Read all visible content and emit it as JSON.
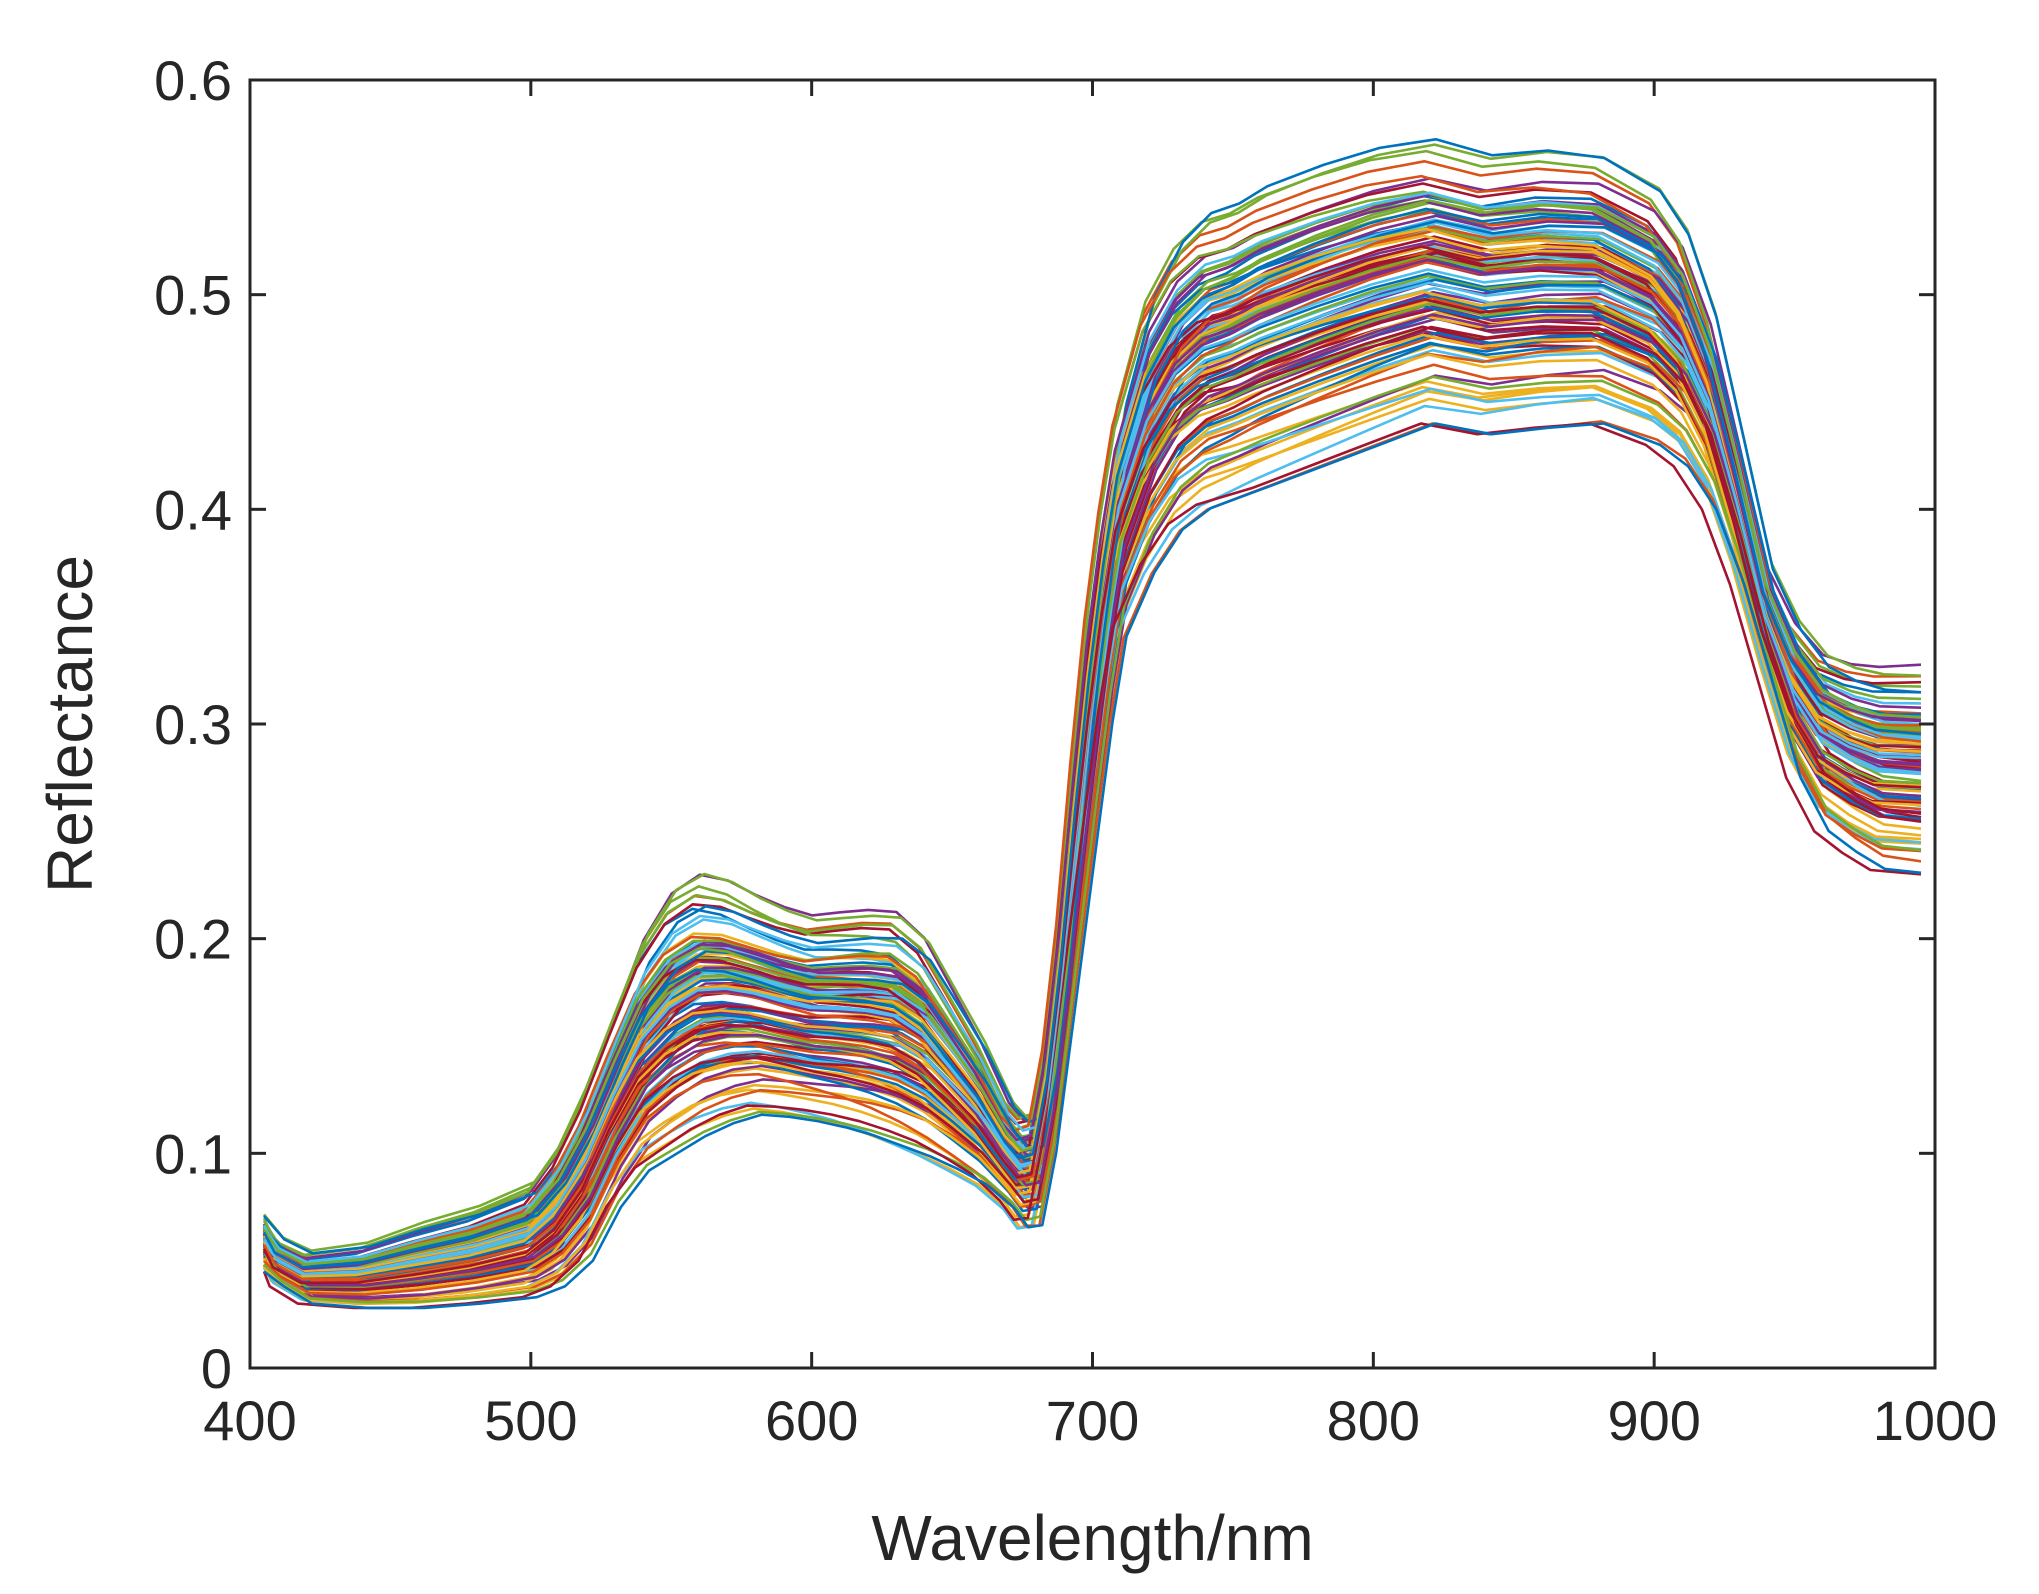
{
  "chart_data": {
    "type": "line",
    "title": "",
    "xlabel": "Wavelength/nm",
    "ylabel": "Reflectance",
    "xlim": [
      400,
      1000
    ],
    "ylim": [
      0,
      0.6
    ],
    "xticks": [
      400,
      500,
      600,
      700,
      800,
      900,
      1000
    ],
    "yticks": [
      0,
      0.1,
      0.2,
      0.3,
      0.4,
      0.5,
      0.6
    ],
    "xtick_labels": [
      "400",
      "500",
      "600",
      700,
      "800",
      "900",
      "1000"
    ],
    "ytick_labels": [
      "0",
      "0.1",
      "0.2",
      "0.3",
      "0.4",
      "0.5",
      "0.6"
    ],
    "grid": false,
    "legend": "none",
    "series_count_approx": 120,
    "x": [
      405,
      410,
      420,
      440,
      460,
      480,
      500,
      510,
      520,
      530,
      540,
      550,
      560,
      570,
      580,
      590,
      600,
      610,
      620,
      630,
      640,
      650,
      660,
      670,
      675,
      680,
      685,
      690,
      695,
      700,
      705,
      710,
      720,
      730,
      740,
      750,
      760,
      780,
      800,
      820,
      840,
      860,
      880,
      900,
      910,
      920,
      930,
      940,
      950,
      960,
      970,
      980,
      995
    ],
    "envelope_low": [
      0.045,
      0.038,
      0.03,
      0.028,
      0.028,
      0.03,
      0.033,
      0.038,
      0.05,
      0.075,
      0.092,
      0.1,
      0.108,
      0.114,
      0.118,
      0.117,
      0.115,
      0.112,
      0.108,
      0.103,
      0.098,
      0.092,
      0.085,
      0.074,
      0.065,
      0.066,
      0.1,
      0.15,
      0.2,
      0.25,
      0.3,
      0.34,
      0.37,
      0.39,
      0.4,
      0.405,
      0.41,
      0.42,
      0.43,
      0.44,
      0.435,
      0.438,
      0.44,
      0.43,
      0.42,
      0.4,
      0.365,
      0.32,
      0.275,
      0.25,
      0.24,
      0.232,
      0.23
    ],
    "envelope_high": [
      0.073,
      0.062,
      0.056,
      0.06,
      0.07,
      0.078,
      0.09,
      0.11,
      0.14,
      0.175,
      0.21,
      0.232,
      0.24,
      0.236,
      0.228,
      0.222,
      0.218,
      0.22,
      0.222,
      0.222,
      0.21,
      0.185,
      0.16,
      0.13,
      0.123,
      0.125,
      0.16,
      0.22,
      0.3,
      0.37,
      0.42,
      0.46,
      0.51,
      0.535,
      0.548,
      0.552,
      0.56,
      0.57,
      0.578,
      0.582,
      0.575,
      0.578,
      0.575,
      0.56,
      0.54,
      0.5,
      0.44,
      0.38,
      0.355,
      0.34,
      0.335,
      0.333,
      0.333
    ],
    "series_palette": [
      "#0072BD",
      "#D95319",
      "#EDB120",
      "#7E2F8E",
      "#77AC30",
      "#4DBEEE",
      "#A2142F"
    ]
  }
}
